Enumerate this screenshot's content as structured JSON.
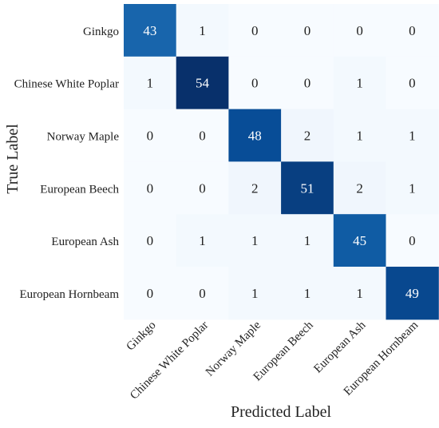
{
  "chart_data": {
    "type": "heatmap",
    "title": "",
    "xlabel": "Predicted Label",
    "ylabel": "True Label",
    "x_categories": [
      "Ginkgo",
      "Chinese White Poplar",
      "Norway Maple",
      "European Beech",
      "European Ash",
      "European Hornbeam"
    ],
    "y_categories": [
      "Ginkgo",
      "Chinese White Poplar",
      "Norway Maple",
      "European Beech",
      "European Ash",
      "European Hornbeam"
    ],
    "values": [
      [
        43,
        1,
        0,
        0,
        0,
        0
      ],
      [
        1,
        54,
        0,
        0,
        1,
        0
      ],
      [
        0,
        0,
        48,
        2,
        1,
        1
      ],
      [
        0,
        0,
        2,
        51,
        2,
        1
      ],
      [
        0,
        1,
        1,
        1,
        45,
        0
      ],
      [
        0,
        0,
        1,
        1,
        1,
        49
      ]
    ],
    "colormap": "Blues",
    "value_range": [
      0,
      54
    ],
    "colorbar": false,
    "grid": false
  },
  "colors": {
    "low": "#f7fbff",
    "high": "#08306b",
    "text_dark": "#222222",
    "text_light": "#ffffff"
  }
}
